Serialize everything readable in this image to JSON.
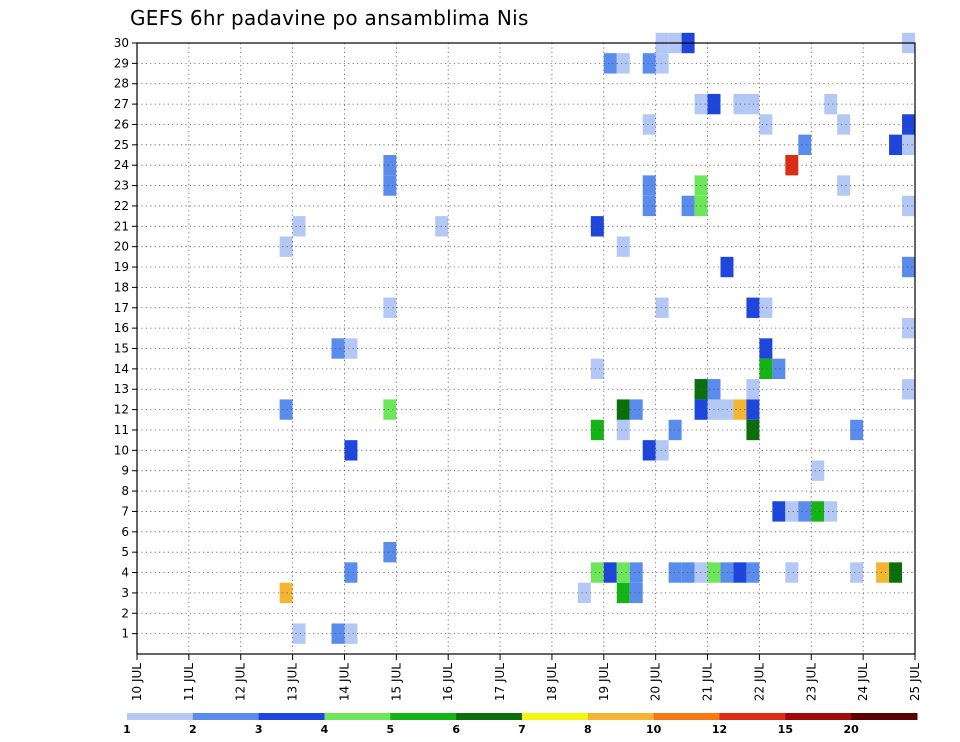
{
  "chart_data": {
    "type": "heatmap",
    "title": "GEFS 6hr padavine po ansamblima Nis",
    "xlabel": "",
    "ylabel": "",
    "y_ticks": [
      1,
      2,
      3,
      4,
      5,
      6,
      7,
      8,
      9,
      10,
      11,
      12,
      13,
      14,
      15,
      16,
      17,
      18,
      19,
      20,
      21,
      22,
      23,
      24,
      25,
      26,
      27,
      28,
      29,
      30
    ],
    "x_ticks": [
      {
        "day": 10,
        "label": "10 JUL"
      },
      {
        "day": 11,
        "label": "11 JUL"
      },
      {
        "day": 12,
        "label": "12 JUL"
      },
      {
        "day": 13,
        "label": "13 JUL"
      },
      {
        "day": 14,
        "label": "14 JUL"
      },
      {
        "day": 15,
        "label": "15 JUL"
      },
      {
        "day": 16,
        "label": "16 JUL"
      },
      {
        "day": 17,
        "label": "17 JUL"
      },
      {
        "day": 18,
        "label": "18 JUL"
      },
      {
        "day": 19,
        "label": "19 JUL"
      },
      {
        "day": 20,
        "label": "20 JUL"
      },
      {
        "day": 21,
        "label": "21 JUL"
      },
      {
        "day": 22,
        "label": "22 JUL"
      },
      {
        "day": 23,
        "label": "23 JUL"
      },
      {
        "day": 24,
        "label": "24 JUL"
      },
      {
        "day": 25,
        "label": "25 JUL"
      }
    ],
    "x_range_days": [
      10,
      25
    ],
    "y_range": [
      0,
      30
    ],
    "grid": true,
    "legend_position": "bottom",
    "legend": {
      "colors": [
        "#b4c8f5",
        "#5a8ced",
        "#1e46dc",
        "#6ee65a",
        "#14b414",
        "#0a6e0a",
        "#f5f514",
        "#f5b432",
        "#f57814",
        "#dc2d14",
        "#a00a0a",
        "#5a0000"
      ],
      "labels": [
        "1",
        "2",
        "3",
        "4",
        "5",
        "6",
        "7",
        "8",
        "10",
        "12",
        "15",
        "20"
      ]
    },
    "color_thresholds_mm": [
      1,
      2,
      3,
      4,
      5,
      6,
      7,
      8,
      10,
      12,
      15,
      20
    ],
    "cells_note": "each cell: member (y), time in days (x, left edge), value = precipitation class in mm",
    "cells": [
      {
        "member": 1,
        "time": 13.0,
        "value": 1
      },
      {
        "member": 1,
        "time": 13.75,
        "value": 2
      },
      {
        "member": 1,
        "time": 14.0,
        "value": 1
      },
      {
        "member": 3,
        "time": 12.75,
        "value": 8
      },
      {
        "member": 3,
        "time": 18.5,
        "value": 1
      },
      {
        "member": 3,
        "time": 19.25,
        "value": 5
      },
      {
        "member": 3,
        "time": 19.5,
        "value": 2
      },
      {
        "member": 4,
        "time": 14.0,
        "value": 2
      },
      {
        "member": 4,
        "time": 18.75,
        "value": 4
      },
      {
        "member": 4,
        "time": 19.0,
        "value": 3
      },
      {
        "member": 4,
        "time": 19.25,
        "value": 4
      },
      {
        "member": 4,
        "time": 19.5,
        "value": 2
      },
      {
        "member": 4,
        "time": 20.25,
        "value": 2
      },
      {
        "member": 4,
        "time": 20.5,
        "value": 2
      },
      {
        "member": 4,
        "time": 20.75,
        "value": 1
      },
      {
        "member": 4,
        "time": 21.0,
        "value": 4
      },
      {
        "member": 4,
        "time": 21.25,
        "value": 2
      },
      {
        "member": 4,
        "time": 21.5,
        "value": 3
      },
      {
        "member": 4,
        "time": 21.75,
        "value": 2
      },
      {
        "member": 4,
        "time": 22.5,
        "value": 1
      },
      {
        "member": 4,
        "time": 23.75,
        "value": 1
      },
      {
        "member": 4,
        "time": 24.25,
        "value": 8
      },
      {
        "member": 4,
        "time": 24.5,
        "value": 6
      },
      {
        "member": 5,
        "time": 14.75,
        "value": 2
      },
      {
        "member": 7,
        "time": 22.25,
        "value": 3
      },
      {
        "member": 7,
        "time": 22.5,
        "value": 1
      },
      {
        "member": 7,
        "time": 22.75,
        "value": 2
      },
      {
        "member": 7,
        "time": 23.0,
        "value": 5
      },
      {
        "member": 7,
        "time": 23.25,
        "value": 1
      },
      {
        "member": 9,
        "time": 23.0,
        "value": 1
      },
      {
        "member": 10,
        "time": 14.0,
        "value": 3
      },
      {
        "member": 10,
        "time": 19.75,
        "value": 3
      },
      {
        "member": 10,
        "time": 20.0,
        "value": 1
      },
      {
        "member": 11,
        "time": 18.75,
        "value": 5
      },
      {
        "member": 11,
        "time": 19.25,
        "value": 1
      },
      {
        "member": 11,
        "time": 20.25,
        "value": 2
      },
      {
        "member": 11,
        "time": 21.75,
        "value": 6
      },
      {
        "member": 11,
        "time": 23.75,
        "value": 2
      },
      {
        "member": 12,
        "time": 12.75,
        "value": 2
      },
      {
        "member": 12,
        "time": 14.75,
        "value": 4
      },
      {
        "member": 12,
        "time": 19.25,
        "value": 6
      },
      {
        "member": 12,
        "time": 19.5,
        "value": 2
      },
      {
        "member": 12,
        "time": 20.75,
        "value": 3
      },
      {
        "member": 12,
        "time": 21.0,
        "value": 1
      },
      {
        "member": 12,
        "time": 21.25,
        "value": 1
      },
      {
        "member": 12,
        "time": 21.5,
        "value": 8
      },
      {
        "member": 12,
        "time": 21.75,
        "value": 3
      },
      {
        "member": 13,
        "time": 20.75,
        "value": 6
      },
      {
        "member": 13,
        "time": 21.0,
        "value": 2
      },
      {
        "member": 13,
        "time": 21.75,
        "value": 1
      },
      {
        "member": 13,
        "time": 24.75,
        "value": 1
      },
      {
        "member": 14,
        "time": 18.75,
        "value": 1
      },
      {
        "member": 14,
        "time": 22.0,
        "value": 5
      },
      {
        "member": 14,
        "time": 22.25,
        "value": 2
      },
      {
        "member": 15,
        "time": 13.75,
        "value": 2
      },
      {
        "member": 15,
        "time": 14.0,
        "value": 1
      },
      {
        "member": 15,
        "time": 22.0,
        "value": 3
      },
      {
        "member": 16,
        "time": 24.75,
        "value": 1
      },
      {
        "member": 17,
        "time": 14.75,
        "value": 1
      },
      {
        "member": 17,
        "time": 20.0,
        "value": 1
      },
      {
        "member": 17,
        "time": 21.75,
        "value": 3
      },
      {
        "member": 17,
        "time": 22.0,
        "value": 1
      },
      {
        "member": 19,
        "time": 21.25,
        "value": 3
      },
      {
        "member": 19,
        "time": 24.75,
        "value": 2
      },
      {
        "member": 20,
        "time": 12.75,
        "value": 1
      },
      {
        "member": 20,
        "time": 19.25,
        "value": 1
      },
      {
        "member": 21,
        "time": 13.0,
        "value": 1
      },
      {
        "member": 21,
        "time": 15.75,
        "value": 1
      },
      {
        "member": 21,
        "time": 18.75,
        "value": 3
      },
      {
        "member": 22,
        "time": 19.75,
        "value": 2
      },
      {
        "member": 22,
        "time": 20.5,
        "value": 2
      },
      {
        "member": 22,
        "time": 20.75,
        "value": 4
      },
      {
        "member": 22,
        "time": 24.75,
        "value": 1
      },
      {
        "member": 23,
        "time": 14.75,
        "value": 2
      },
      {
        "member": 23,
        "time": 19.75,
        "value": 2
      },
      {
        "member": 23,
        "time": 20.75,
        "value": 4
      },
      {
        "member": 23,
        "time": 23.5,
        "value": 1
      },
      {
        "member": 24,
        "time": 14.75,
        "value": 2
      },
      {
        "member": 24,
        "time": 22.5,
        "value": 12
      },
      {
        "member": 25,
        "time": 22.75,
        "value": 2
      },
      {
        "member": 25,
        "time": 24.5,
        "value": 3
      },
      {
        "member": 25,
        "time": 24.75,
        "value": 1
      },
      {
        "member": 26,
        "time": 19.75,
        "value": 1
      },
      {
        "member": 26,
        "time": 22.0,
        "value": 1
      },
      {
        "member": 26,
        "time": 23.5,
        "value": 1
      },
      {
        "member": 26,
        "time": 24.75,
        "value": 3
      },
      {
        "member": 27,
        "time": 20.75,
        "value": 1
      },
      {
        "member": 27,
        "time": 21.0,
        "value": 3
      },
      {
        "member": 27,
        "time": 21.5,
        "value": 1
      },
      {
        "member": 27,
        "time": 21.75,
        "value": 1
      },
      {
        "member": 27,
        "time": 23.25,
        "value": 1
      },
      {
        "member": 29,
        "time": 19.0,
        "value": 2
      },
      {
        "member": 29,
        "time": 19.25,
        "value": 1
      },
      {
        "member": 29,
        "time": 19.75,
        "value": 2
      },
      {
        "member": 29,
        "time": 20.0,
        "value": 1
      },
      {
        "member": 30,
        "time": 20.0,
        "value": 1
      },
      {
        "member": 30,
        "time": 20.25,
        "value": 1
      },
      {
        "member": 30,
        "time": 20.5,
        "value": 3
      },
      {
        "member": 30,
        "time": 24.75,
        "value": 1
      }
    ]
  }
}
